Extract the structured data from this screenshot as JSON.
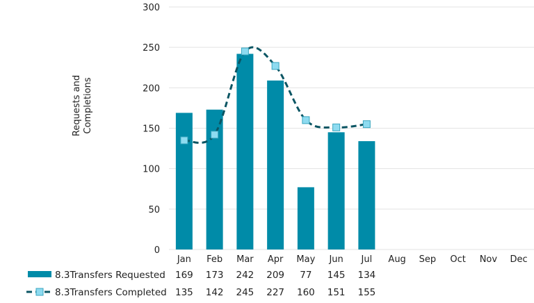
{
  "chart_data": {
    "type": "bar",
    "title": "",
    "xlabel": "",
    "ylabel": "Requests and Completions",
    "ylim": [
      0,
      300
    ],
    "yticks": [
      0,
      50,
      100,
      150,
      200,
      250,
      300
    ],
    "grid": true,
    "legend": "bottom data table",
    "categories": [
      "Jan",
      "Feb",
      "Mar",
      "Apr",
      "May",
      "Jun",
      "Jul",
      "Aug",
      "Sep",
      "Oct",
      "Nov",
      "Dec"
    ],
    "series": [
      {
        "name": "8.3Transfers Requested",
        "kind": "bar",
        "color": "#008BA8",
        "values": [
          169,
          173,
          242,
          209,
          77,
          145,
          134,
          null,
          null,
          null,
          null,
          null
        ]
      },
      {
        "name": "8.3Transfers Completed",
        "kind": "line-dashed-smooth",
        "color": "#0B5563",
        "marker_color": "#8EDBF0",
        "values": [
          135,
          142,
          245,
          227,
          160,
          151,
          155,
          null,
          null,
          null,
          null,
          null
        ]
      }
    ]
  }
}
